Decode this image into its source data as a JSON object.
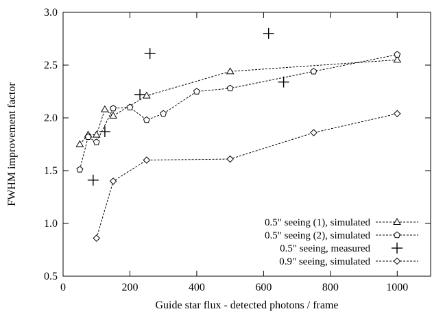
{
  "chart_data": {
    "type": "line",
    "xlabel": "Guide star flux - detected photons / frame",
    "ylabel": "FWHM improvement factor",
    "xlim": [
      0,
      1100
    ],
    "ylim": [
      0.5,
      3.0
    ],
    "xticks": [
      0,
      200,
      400,
      600,
      800,
      1000
    ],
    "yticks": [
      0.5,
      1.0,
      1.5,
      2.0,
      2.5,
      3.0
    ],
    "xtick_labels": [
      "0",
      "200",
      "400",
      "600",
      "800",
      "1000"
    ],
    "ytick_labels": [
      "0.5",
      "1.0",
      "1.5",
      "2.0",
      "2.5",
      "3.0"
    ],
    "grid": false,
    "legend_position": "bottom-right",
    "series": [
      {
        "name": "0.5\" seeing (1), simulated",
        "marker": "triangle",
        "line": true,
        "x": [
          50,
          75,
          100,
          125,
          150,
          250,
          500,
          1000
        ],
        "y": [
          1.75,
          1.84,
          1.84,
          2.08,
          2.02,
          2.21,
          2.44,
          2.55
        ]
      },
      {
        "name": "0.5\" seeing (2), simulated",
        "marker": "pentagon",
        "line": true,
        "x": [
          50,
          75,
          100,
          150,
          200,
          250,
          300,
          400,
          500,
          750,
          1000
        ],
        "y": [
          1.51,
          1.82,
          1.77,
          2.09,
          2.1,
          1.98,
          2.04,
          2.25,
          2.28,
          2.44,
          2.6
        ]
      },
      {
        "name": "0.5\" seeing, measured",
        "marker": "plus",
        "line": false,
        "x": [
          90,
          125,
          230,
          260,
          615,
          660
        ],
        "y": [
          1.41,
          1.87,
          2.22,
          2.61,
          2.8,
          2.34
        ]
      },
      {
        "name": "0.9\" seeing, simulated",
        "marker": "diamond",
        "line": true,
        "x": [
          100,
          150,
          250,
          500,
          750,
          1000
        ],
        "y": [
          0.86,
          1.4,
          1.6,
          1.61,
          1.86,
          2.04
        ]
      }
    ]
  }
}
